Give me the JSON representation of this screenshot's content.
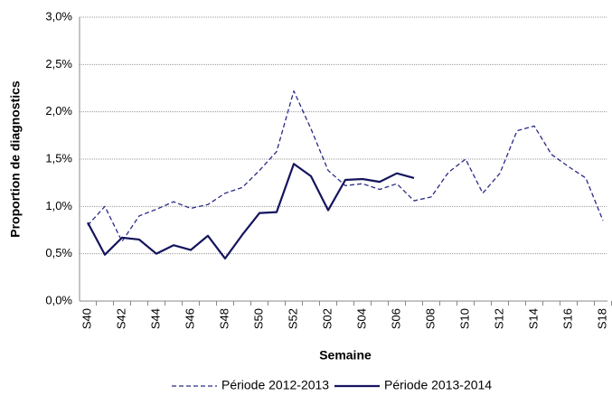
{
  "chart_data": {
    "type": "line",
    "y_label": "Proportion de diagnostics",
    "x_label": "Semaine",
    "categories": [
      "S40",
      null,
      "S42",
      null,
      "S44",
      null,
      "S46",
      null,
      "S48",
      null,
      "S50",
      null,
      "S52",
      null,
      "S02",
      null,
      "S04",
      null,
      "S06",
      null,
      "S08",
      null,
      "S10",
      null,
      "S12",
      null,
      "S14",
      null,
      "S16",
      null,
      "S18"
    ],
    "series": [
      {
        "name": "Période 2012-2013",
        "color": "#2a2a85",
        "dashed": true,
        "values": [
          0.8,
          1.0,
          0.63,
          0.9,
          0.97,
          1.05,
          0.98,
          1.02,
          1.14,
          1.2,
          1.38,
          1.58,
          2.22,
          1.82,
          1.38,
          1.22,
          1.24,
          1.18,
          1.24,
          1.06,
          1.1,
          1.36,
          1.5,
          1.14,
          1.35,
          1.8,
          1.85,
          1.55,
          1.42,
          1.3,
          0.85
        ]
      },
      {
        "name": "Période 2013-2014",
        "color": "#15145e",
        "dashed": false,
        "values": [
          0.83,
          0.49,
          0.67,
          0.65,
          0.5,
          0.59,
          0.54,
          0.69,
          0.45,
          0.7,
          0.93,
          0.94,
          1.45,
          1.32,
          0.96,
          1.28,
          1.29,
          1.26,
          1.35,
          1.3,
          null,
          null,
          null,
          null,
          null,
          null,
          null,
          null,
          null,
          null,
          null
        ]
      }
    ],
    "ylim": [
      0,
      3
    ],
    "yticks": [
      {
        "value": 0,
        "label": "0,0%"
      },
      {
        "value": 0.5,
        "label": "0,5%"
      },
      {
        "value": 1,
        "label": "1,0%"
      },
      {
        "value": 1.5,
        "label": "1,5%"
      },
      {
        "value": 2,
        "label": "2,0%"
      },
      {
        "value": 2.5,
        "label": "2,5%"
      },
      {
        "value": 3,
        "label": "3,0%"
      }
    ],
    "grid": true,
    "legend": "bottom"
  }
}
